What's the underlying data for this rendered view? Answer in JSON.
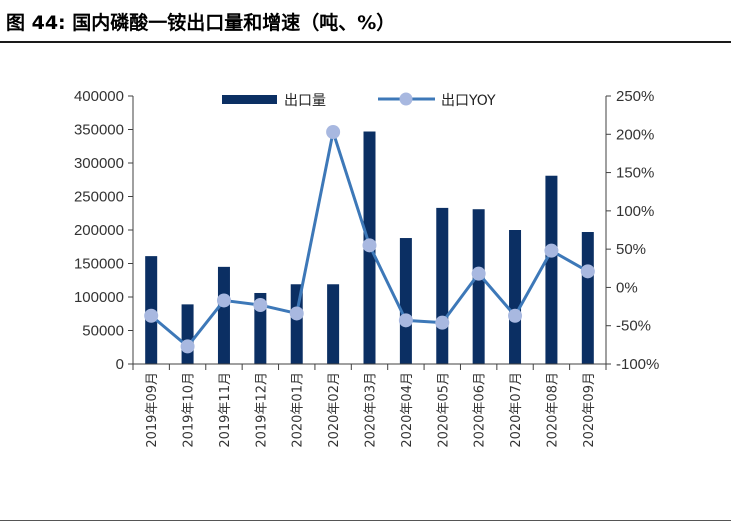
{
  "figure": {
    "title": "图 44:  国内磷酸一铵出口量和增速（吨、%）"
  },
  "chart_data": {
    "type": "bar",
    "categories": [
      "2019年09月",
      "2019年10月",
      "2019年11月",
      "2019年12月",
      "2020年01月",
      "2020年02月",
      "2020年03月",
      "2020年04月",
      "2020年05月",
      "2020年06月",
      "2020年07月",
      "2020年08月",
      "2020年09月"
    ],
    "series": [
      {
        "name": "出口量",
        "type": "bar",
        "axis": "left",
        "color": "#0b2f63",
        "values": [
          161000,
          89000,
          145000,
          106000,
          119000,
          119000,
          347000,
          188000,
          233000,
          231000,
          200000,
          281000,
          197000
        ]
      },
      {
        "name": "出口YOY",
        "type": "line",
        "axis": "right",
        "color": "#3d78b8",
        "marker_color": "#a8b8e0",
        "values": [
          -37,
          -77,
          -17,
          -23,
          -34,
          203,
          55,
          -43,
          -46,
          18,
          -37,
          48,
          21
        ]
      }
    ],
    "y_left": {
      "min": 0,
      "max": 400000,
      "step": 50000,
      "tick_labels": [
        "0",
        "50000",
        "100000",
        "150000",
        "200000",
        "250000",
        "300000",
        "350000",
        "400000"
      ]
    },
    "y_right": {
      "min": -100,
      "max": 250,
      "step": 50,
      "tick_labels": [
        "-100%",
        "-50%",
        "0%",
        "50%",
        "100%",
        "150%",
        "200%",
        "250%"
      ]
    },
    "legend": {
      "placement": "top-center",
      "entries": [
        "出口量",
        "出口YOY"
      ]
    },
    "grid": false
  }
}
